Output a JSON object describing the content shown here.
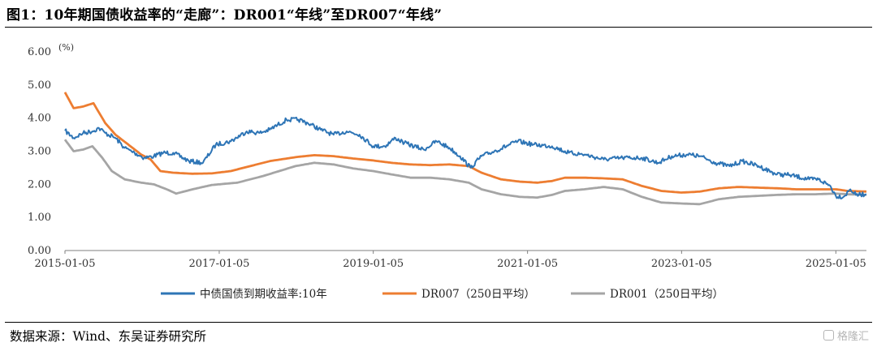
{
  "title": "图1：10年期国债收益率的“走廊”：DR001“年线”至DR007“年线”",
  "source": "数据来源：Wind、东吴证券研究所",
  "watermark": "格隆汇",
  "chart_data": {
    "type": "line",
    "unit_label": "(%)",
    "ylim": [
      0,
      6
    ],
    "yticks": [
      "0.00",
      "1.00",
      "2.00",
      "3.00",
      "4.00",
      "5.00",
      "6.00"
    ],
    "xlim": [
      "2015-01-05",
      "2025-05-30"
    ],
    "xticks": [
      "2015-01-05",
      "2017-01-05",
      "2019-01-05",
      "2021-01-05",
      "2023-01-05",
      "2025-01-05"
    ],
    "grid": false,
    "legend_position": "bottom",
    "colors": {
      "treasury": "#2e75b6",
      "dr007": "#ed7d31",
      "dr001": "#a5a5a5"
    },
    "series": [
      {
        "name": "中债国债到期收益率:10年",
        "key": "treasury",
        "points": [
          [
            "2015-01-05",
            3.62
          ],
          [
            "2015-02-15",
            3.4
          ],
          [
            "2015-04-01",
            3.55
          ],
          [
            "2015-05-15",
            3.6
          ],
          [
            "2015-06-15",
            3.7
          ],
          [
            "2015-07-15",
            3.55
          ],
          [
            "2015-09-01",
            3.4
          ],
          [
            "2015-10-15",
            3.1
          ],
          [
            "2015-12-01",
            2.95
          ],
          [
            "2016-01-15",
            2.8
          ],
          [
            "2016-03-01",
            2.85
          ],
          [
            "2016-04-15",
            2.95
          ],
          [
            "2016-06-01",
            2.95
          ],
          [
            "2016-08-15",
            2.7
          ],
          [
            "2016-10-20",
            2.65
          ],
          [
            "2016-12-20",
            3.2
          ],
          [
            "2017-03-01",
            3.3
          ],
          [
            "2017-05-15",
            3.6
          ],
          [
            "2017-07-15",
            3.55
          ],
          [
            "2017-09-01",
            3.65
          ],
          [
            "2017-11-20",
            3.95
          ],
          [
            "2018-01-15",
            3.95
          ],
          [
            "2018-03-01",
            3.85
          ],
          [
            "2018-05-01",
            3.65
          ],
          [
            "2018-07-01",
            3.5
          ],
          [
            "2018-09-01",
            3.6
          ],
          [
            "2018-11-01",
            3.5
          ],
          [
            "2019-01-05",
            3.15
          ],
          [
            "2019-03-01",
            3.15
          ],
          [
            "2019-04-20",
            3.4
          ],
          [
            "2019-06-01",
            3.25
          ],
          [
            "2019-09-01",
            3.05
          ],
          [
            "2019-11-01",
            3.3
          ],
          [
            "2020-01-01",
            3.1
          ],
          [
            "2020-02-20",
            2.85
          ],
          [
            "2020-04-10",
            2.5
          ],
          [
            "2020-06-01",
            2.85
          ],
          [
            "2020-08-01",
            3.0
          ],
          [
            "2020-11-20",
            3.3
          ],
          [
            "2021-02-01",
            3.2
          ],
          [
            "2021-05-01",
            3.15
          ],
          [
            "2021-07-20",
            2.95
          ],
          [
            "2021-10-01",
            2.9
          ],
          [
            "2022-01-01",
            2.75
          ],
          [
            "2022-04-01",
            2.8
          ],
          [
            "2022-07-01",
            2.8
          ],
          [
            "2022-09-15",
            2.65
          ],
          [
            "2022-11-20",
            2.85
          ],
          [
            "2023-02-01",
            2.9
          ],
          [
            "2023-04-01",
            2.85
          ],
          [
            "2023-06-15",
            2.65
          ],
          [
            "2023-08-20",
            2.55
          ],
          [
            "2023-10-20",
            2.7
          ],
          [
            "2024-01-05",
            2.55
          ],
          [
            "2024-04-01",
            2.3
          ],
          [
            "2024-06-01",
            2.28
          ],
          [
            "2024-09-01",
            2.15
          ],
          [
            "2024-10-15",
            2.15
          ],
          [
            "2024-12-10",
            1.95
          ],
          [
            "2025-01-05",
            1.65
          ],
          [
            "2025-02-10",
            1.62
          ],
          [
            "2025-03-15",
            1.85
          ],
          [
            "2025-04-10",
            1.68
          ],
          [
            "2025-05-30",
            1.7
          ]
        ]
      },
      {
        "name": "DR007（250日平均）",
        "key": "dr007",
        "points": [
          [
            "2015-01-05",
            4.78
          ],
          [
            "2015-02-15",
            4.3
          ],
          [
            "2015-04-01",
            4.35
          ],
          [
            "2015-05-20",
            4.45
          ],
          [
            "2015-07-15",
            3.85
          ],
          [
            "2015-09-01",
            3.5
          ],
          [
            "2015-11-01",
            3.2
          ],
          [
            "2016-01-01",
            2.9
          ],
          [
            "2016-02-15",
            2.75
          ],
          [
            "2016-04-01",
            2.4
          ],
          [
            "2016-06-01",
            2.35
          ],
          [
            "2016-09-01",
            2.32
          ],
          [
            "2016-12-01",
            2.33
          ],
          [
            "2017-03-01",
            2.4
          ],
          [
            "2017-06-01",
            2.55
          ],
          [
            "2017-09-01",
            2.7
          ],
          [
            "2018-01-01",
            2.82
          ],
          [
            "2018-04-01",
            2.88
          ],
          [
            "2018-07-01",
            2.85
          ],
          [
            "2018-10-01",
            2.78
          ],
          [
            "2019-01-05",
            2.72
          ],
          [
            "2019-04-01",
            2.65
          ],
          [
            "2019-07-01",
            2.6
          ],
          [
            "2019-10-01",
            2.58
          ],
          [
            "2020-01-01",
            2.6
          ],
          [
            "2020-04-01",
            2.55
          ],
          [
            "2020-06-01",
            2.35
          ],
          [
            "2020-09-01",
            2.15
          ],
          [
            "2020-12-01",
            2.08
          ],
          [
            "2021-02-20",
            2.05
          ],
          [
            "2021-05-01",
            2.1
          ],
          [
            "2021-07-01",
            2.2
          ],
          [
            "2021-10-01",
            2.2
          ],
          [
            "2022-01-01",
            2.18
          ],
          [
            "2022-04-01",
            2.15
          ],
          [
            "2022-07-01",
            1.95
          ],
          [
            "2022-10-01",
            1.8
          ],
          [
            "2023-01-05",
            1.75
          ],
          [
            "2023-04-01",
            1.78
          ],
          [
            "2023-07-01",
            1.88
          ],
          [
            "2023-10-01",
            1.92
          ],
          [
            "2024-01-01",
            1.9
          ],
          [
            "2024-04-01",
            1.88
          ],
          [
            "2024-07-01",
            1.85
          ],
          [
            "2024-10-01",
            1.85
          ],
          [
            "2025-01-05",
            1.85
          ],
          [
            "2025-03-01",
            1.8
          ],
          [
            "2025-05-30",
            1.78
          ]
        ]
      },
      {
        "name": "DR001（250日平均）",
        "key": "dr001",
        "points": [
          [
            "2015-01-05",
            3.35
          ],
          [
            "2015-02-15",
            3.0
          ],
          [
            "2015-04-01",
            3.05
          ],
          [
            "2015-05-15",
            3.15
          ],
          [
            "2015-07-01",
            2.8
          ],
          [
            "2015-08-15",
            2.4
          ],
          [
            "2015-10-15",
            2.15
          ],
          [
            "2016-01-01",
            2.05
          ],
          [
            "2016-03-01",
            2.0
          ],
          [
            "2016-05-01",
            1.85
          ],
          [
            "2016-06-15",
            1.72
          ],
          [
            "2016-09-01",
            1.85
          ],
          [
            "2016-12-01",
            1.98
          ],
          [
            "2017-04-01",
            2.05
          ],
          [
            "2017-08-01",
            2.25
          ],
          [
            "2018-01-01",
            2.55
          ],
          [
            "2018-04-01",
            2.65
          ],
          [
            "2018-07-01",
            2.6
          ],
          [
            "2018-10-01",
            2.48
          ],
          [
            "2019-01-05",
            2.4
          ],
          [
            "2019-04-01",
            2.3
          ],
          [
            "2019-07-01",
            2.2
          ],
          [
            "2019-10-01",
            2.2
          ],
          [
            "2020-01-01",
            2.15
          ],
          [
            "2020-04-01",
            2.05
          ],
          [
            "2020-06-01",
            1.85
          ],
          [
            "2020-09-01",
            1.7
          ],
          [
            "2020-12-01",
            1.62
          ],
          [
            "2021-02-20",
            1.6
          ],
          [
            "2021-05-01",
            1.68
          ],
          [
            "2021-07-01",
            1.8
          ],
          [
            "2021-10-01",
            1.85
          ],
          [
            "2022-01-01",
            1.92
          ],
          [
            "2022-04-01",
            1.85
          ],
          [
            "2022-07-01",
            1.62
          ],
          [
            "2022-10-01",
            1.45
          ],
          [
            "2023-01-05",
            1.42
          ],
          [
            "2023-04-01",
            1.4
          ],
          [
            "2023-07-01",
            1.55
          ],
          [
            "2023-10-01",
            1.62
          ],
          [
            "2024-01-01",
            1.65
          ],
          [
            "2024-04-01",
            1.68
          ],
          [
            "2024-07-01",
            1.7
          ],
          [
            "2024-10-01",
            1.7
          ],
          [
            "2025-01-05",
            1.72
          ],
          [
            "2025-03-01",
            1.7
          ],
          [
            "2025-05-30",
            1.68
          ]
        ]
      }
    ]
  }
}
